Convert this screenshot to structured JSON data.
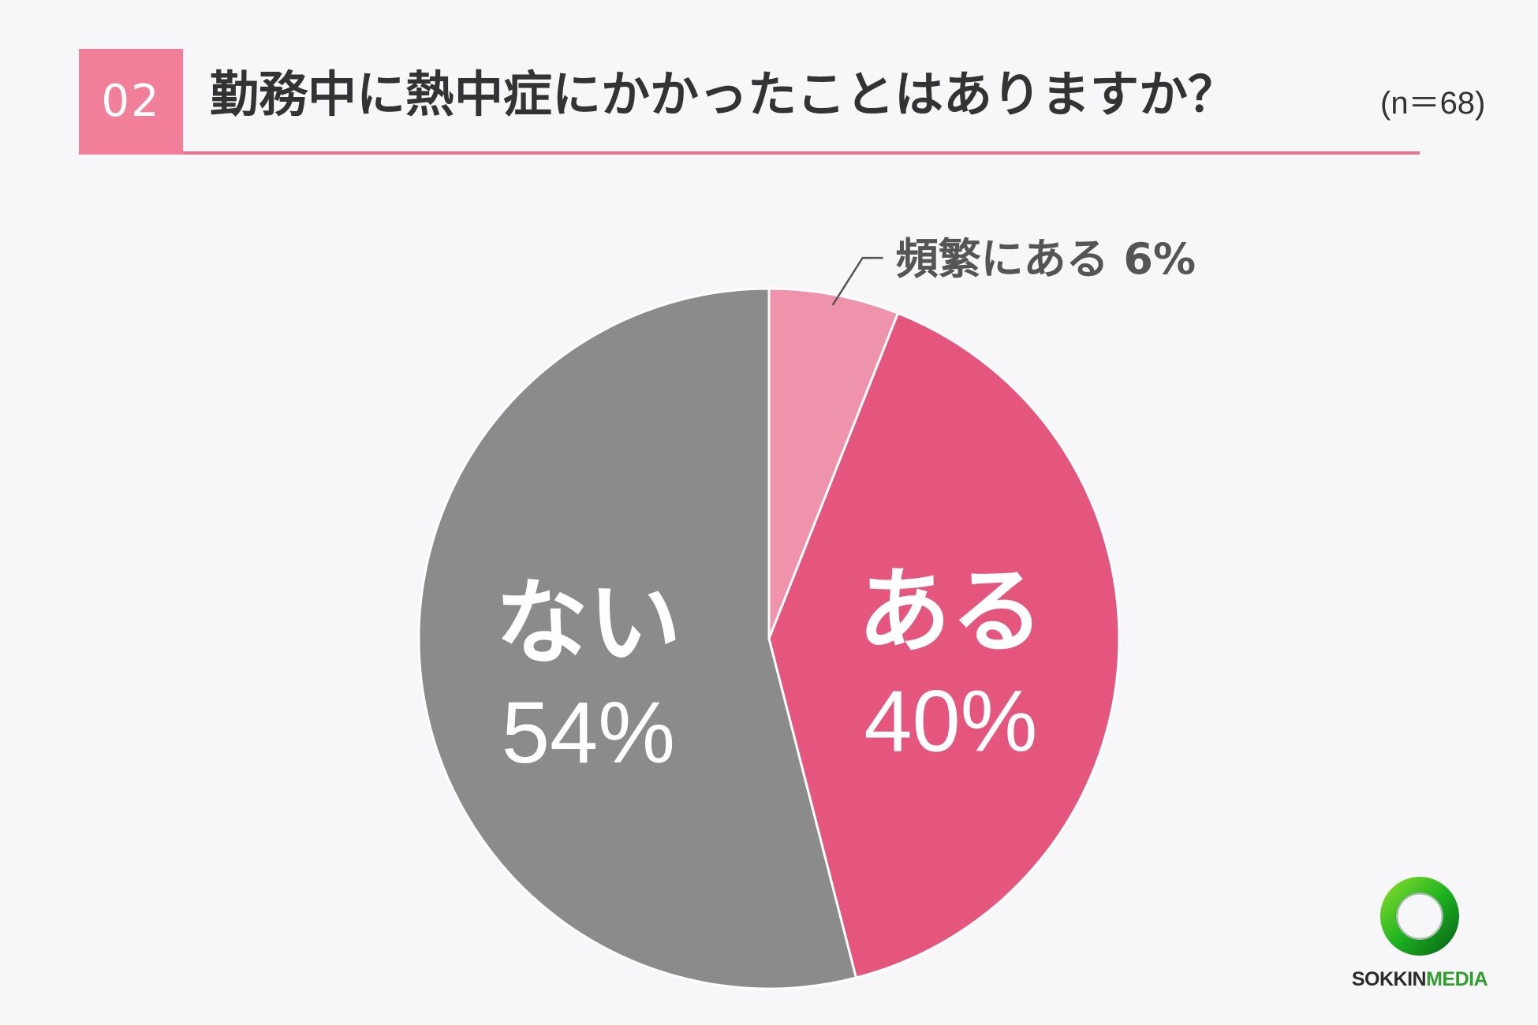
{
  "header": {
    "number": "02",
    "title": "勤務中に熱中症にかかったことはありますか？",
    "sample": "(n＝68)"
  },
  "logo": {
    "part1": "SOKKIN",
    "part2": "MEDIA",
    "ring_color": "#1fb41f"
  },
  "chart_data": {
    "type": "pie",
    "title": "勤務中に熱中症にかかったことはありますか？",
    "slices": [
      {
        "name": "頻繁にある",
        "value": 6,
        "label": "6%",
        "color": "#ee93ab"
      },
      {
        "name": "ある",
        "value": 40,
        "label": "40%",
        "color": "#e4567e"
      },
      {
        "name": "ない",
        "value": 54,
        "label": "54%",
        "color": "#8b8b8b"
      }
    ],
    "start_angle": "12 o'clock",
    "direction": "clockwise",
    "legend": "none"
  }
}
